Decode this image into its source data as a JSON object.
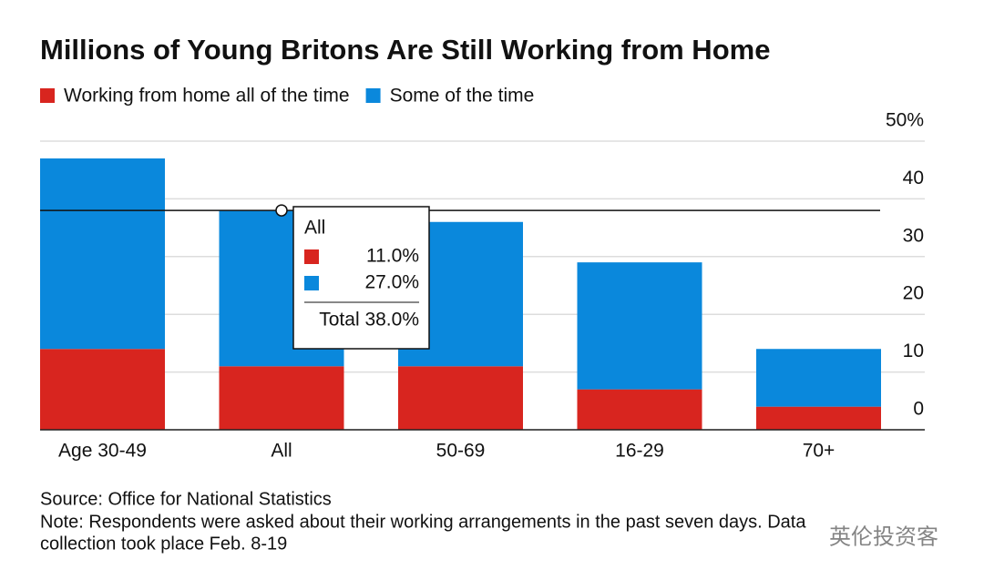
{
  "chart_data": {
    "type": "stacked-bar",
    "title": "Millions of Young Britons Are Still Working from Home",
    "categories": [
      "Age 30-49",
      "All",
      "50-69",
      "16-29",
      "70+"
    ],
    "series": [
      {
        "name": "Working from home all of the time",
        "color": "#d8251f",
        "values": [
          14,
          11,
          11,
          7,
          4
        ],
        "value_labels": [
          null,
          "11.0%",
          null,
          null,
          null
        ]
      },
      {
        "name": "Some of the time",
        "color": "#0a88dc",
        "values": [
          33,
          27,
          25,
          22,
          10
        ],
        "value_labels": [
          null,
          "27.0%",
          null,
          null,
          null
        ]
      }
    ],
    "tooltip_total": "Total 38.0%",
    "ylim": [
      0,
      50
    ],
    "yticks": [
      0,
      10,
      20,
      30,
      40,
      {
        "value": 50,
        "label": "50%"
      }
    ],
    "grid": true,
    "source": "Source: Office for National Statistics",
    "note": [
      "Note: Respondents were asked about their working arrangements in the past seven days. Data",
      "collection took place Feb. 8-19"
    ],
    "watermark": "英伦投资客"
  }
}
